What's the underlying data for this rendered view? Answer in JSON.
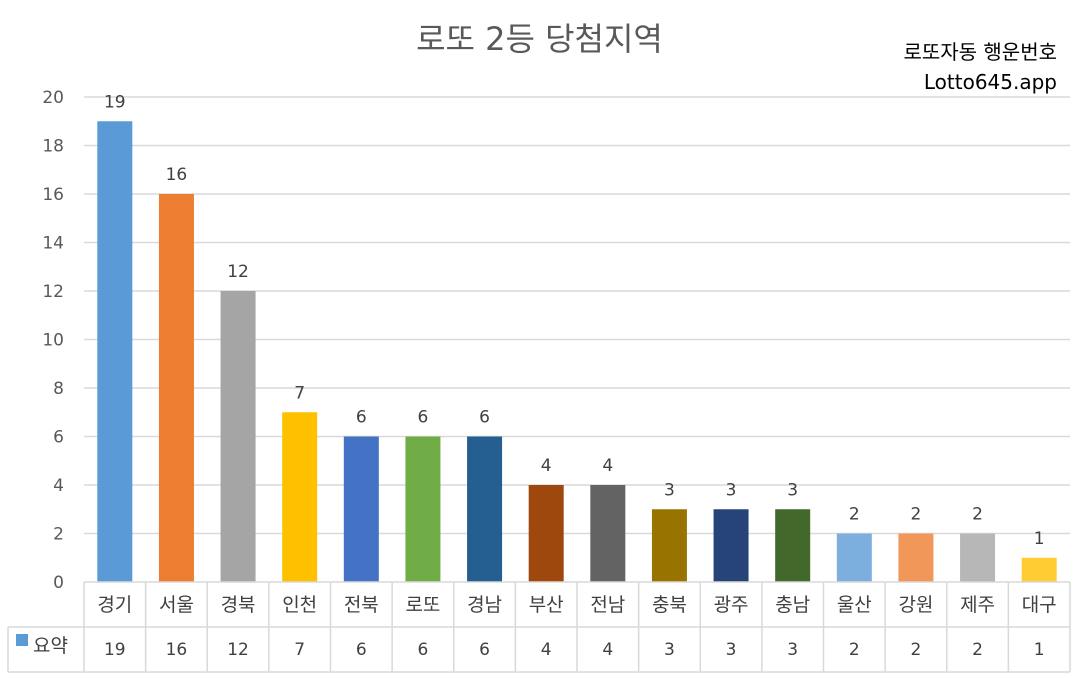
{
  "title": "로또 2등 당첨지역",
  "watermark": {
    "line1": "로또자동 행운번호",
    "line2": "Lotto645.app"
  },
  "chart_data": {
    "type": "bar",
    "categories": [
      "경기",
      "서울",
      "경북",
      "인천",
      "전북",
      "로또",
      "경남",
      "부산",
      "전남",
      "충북",
      "광주",
      "충남",
      "울산",
      "강원",
      "제주",
      "대구"
    ],
    "series": [
      {
        "name": "요약",
        "values": [
          19,
          16,
          12,
          7,
          6,
          6,
          6,
          4,
          4,
          3,
          3,
          3,
          2,
          2,
          2,
          1
        ]
      }
    ],
    "bar_colors": [
      "#5B9BD5",
      "#ED7D31",
      "#A5A5A5",
      "#FFC000",
      "#4472C4",
      "#70AD47",
      "#255E91",
      "#9E480E",
      "#636363",
      "#997300",
      "#264478",
      "#43682B",
      "#7CAFDD",
      "#F1975A",
      "#B7B7B7",
      "#FFCD33"
    ],
    "ylim": [
      0,
      20
    ],
    "yticks": [
      0,
      2,
      4,
      6,
      8,
      10,
      12,
      14,
      16,
      18,
      20
    ],
    "grid": true,
    "data_table": true,
    "legend_key_color": "#5B9BD5"
  }
}
